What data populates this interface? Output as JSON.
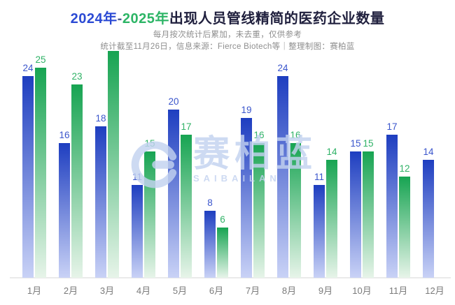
{
  "title": {
    "part_2024": "2024年",
    "dash": "-",
    "part_2025": "2025年",
    "rest": "出现人员管线精简的医药企业数量"
  },
  "subtitle_line1": "每月按次统计后累加，未去重，仅供参考",
  "subtitle_line2": "统计截至11月26日，信息来源：Fierce Biotech等｜整理制图：赛柏蓝",
  "watermark": {
    "logo_icon": "saibailan-logo",
    "text_cn": "赛柏蓝",
    "text_en": "SAIBAILAN"
  },
  "colors": {
    "title_blue": "#2b4ad4",
    "title_green": "#2db566",
    "title_dark": "#20203e",
    "subtitle_gray": "#8e8e8e",
    "axis_gray": "#eaeaea",
    "watermark_blue": "#c3d2f0"
  },
  "chart_data": {
    "type": "bar",
    "title": "2024年-2025年出现人员管线精简的医药企业数量",
    "categories": [
      "1月",
      "2月",
      "3月",
      "4月",
      "5月",
      "6月",
      "7月",
      "8月",
      "9月",
      "10月",
      "11月",
      "12月"
    ],
    "series": [
      {
        "name": "2024年",
        "color_top": "#1e3ec0",
        "color_bottom": "#c9d2f6",
        "label_color": "#3a55cc",
        "values": [
          24,
          16,
          18,
          11,
          20,
          8,
          19,
          24,
          11,
          15,
          17,
          14
        ],
        "labels": [
          "24",
          "16",
          "18",
          "11",
          "20",
          "8",
          "19",
          "24",
          "11",
          "15",
          "17",
          "14"
        ]
      },
      {
        "name": "2025年",
        "color_top": "#17a452",
        "color_bottom": "#e7f4e9",
        "label_color": "#2fb266",
        "values": [
          25,
          23,
          27,
          15,
          17,
          6,
          16,
          16,
          14,
          15,
          12,
          null
        ],
        "labels": [
          "25",
          "23",
          "",
          "15",
          "17",
          "6",
          "16",
          "16",
          "14",
          "15",
          "12",
          ""
        ]
      }
    ],
    "ylim": [
      0,
      30
    ],
    "grid": false,
    "legend": "in-title-colors",
    "annotations": "3月 2025 bar top reaches subtitle area; its numeric label is not visible (value estimated from bar height). 12月 has no 2025 bar."
  }
}
